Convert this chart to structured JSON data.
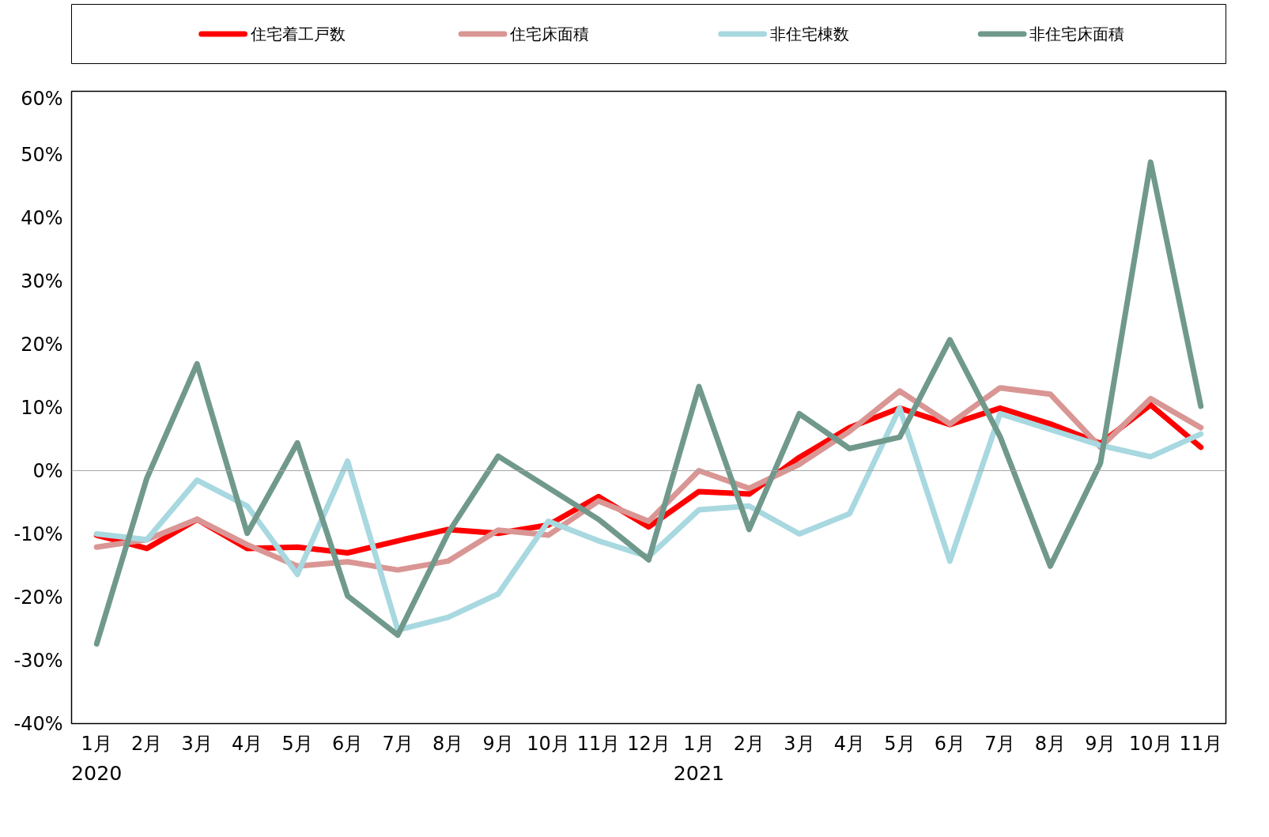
{
  "chart_data": {
    "type": "line",
    "categories": [
      "1月",
      "2月",
      "3月",
      "4月",
      "5月",
      "6月",
      "7月",
      "8月",
      "9月",
      "10月",
      "11月",
      "12月",
      "1月",
      "2月",
      "3月",
      "4月",
      "5月",
      "6月",
      "7月",
      "8月",
      "9月",
      "10月",
      "11月"
    ],
    "series": [
      {
        "name": "住宅着工戸数",
        "color": "#ff0000",
        "values": [
          -10.2,
          -12.3,
          -7.7,
          -12.3,
          -12.1,
          -13.0,
          -11.1,
          -9.3,
          -9.9,
          -8.6,
          -4.1,
          -8.9,
          -3.3,
          -3.7,
          2.1,
          6.8,
          9.9,
          7.3,
          9.9,
          7.4,
          4.3,
          10.4,
          3.7
        ]
      },
      {
        "name": "住宅床面積",
        "color": "#d99694",
        "values": [
          -12.1,
          -10.9,
          -7.7,
          -11.7,
          -15.1,
          -14.4,
          -15.7,
          -14.3,
          -9.4,
          -10.2,
          -4.8,
          -8.0,
          0.0,
          -2.8,
          1.0,
          6.2,
          12.6,
          7.4,
          13.1,
          12.1,
          3.7,
          11.4,
          6.8
        ]
      },
      {
        "name": "非住宅棟数",
        "color": "#a8d8e0",
        "values": [
          -10.0,
          -10.9,
          -1.5,
          -5.6,
          -16.4,
          1.5,
          -25.2,
          -23.2,
          -19.5,
          -8.0,
          -11.1,
          -13.6,
          -6.2,
          -5.6,
          -10.0,
          -6.8,
          9.9,
          -14.3,
          9.0,
          6.5,
          4.0,
          2.2,
          5.8
        ]
      },
      {
        "name": "非住宅床面積",
        "color": "#70998c",
        "values": [
          -27.4,
          -1.2,
          16.9,
          -9.9,
          4.4,
          -19.8,
          -26.0,
          -9.9,
          2.3,
          -2.7,
          -7.7,
          -14.1,
          13.3,
          -9.3,
          9.0,
          3.5,
          5.3,
          20.7,
          5.4,
          -15.1,
          1.2,
          48.8,
          10.2
        ]
      }
    ],
    "ylim": [
      -40,
      60
    ],
    "yticks": [
      {
        "value": -40,
        "label": "-40%"
      },
      {
        "value": -30,
        "label": "-30%"
      },
      {
        "value": -20,
        "label": "-20%"
      },
      {
        "value": -10,
        "label": "-10%"
      },
      {
        "value": 0,
        "label": "0%"
      },
      {
        "value": 10,
        "label": "10%"
      },
      {
        "value": 20,
        "label": "20%"
      },
      {
        "value": 30,
        "label": "30%"
      },
      {
        "value": 40,
        "label": "40%"
      },
      {
        "value": 50,
        "label": "50%"
      },
      {
        "value": 60,
        "label": "60%"
      }
    ],
    "ref_lines": [
      {
        "axis": "y",
        "value": 0,
        "color": "#a6a6a6"
      }
    ],
    "annotations": [
      "2020",
      "2021"
    ],
    "legend": "top",
    "grid": false,
    "line_style": "solid",
    "marker": "none"
  }
}
